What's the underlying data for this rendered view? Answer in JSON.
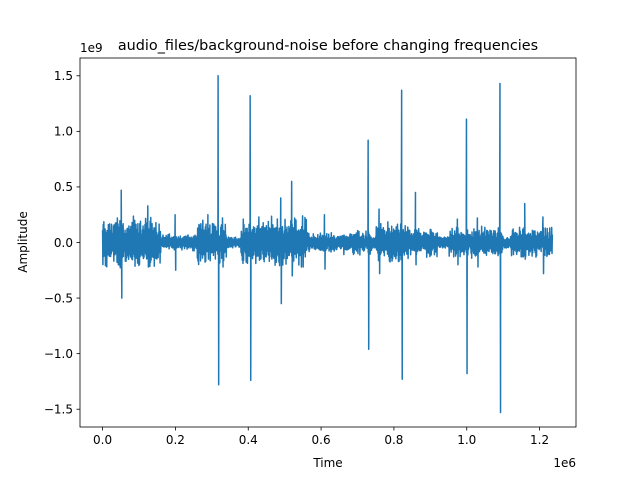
{
  "chart_data": {
    "type": "line",
    "title": "audio_files/background-noise before changing frequencies",
    "xlabel": "Time",
    "ylabel": "Amplitude",
    "x_offset_label": "1e6",
    "y_offset_label": "1e9",
    "xlim": [
      -0.062,
      1.3
    ],
    "ylim": [
      -1.66,
      1.66
    ],
    "x_ticks": [
      0.0,
      0.2,
      0.4,
      0.6,
      0.8,
      1.0,
      1.2
    ],
    "x_tick_labels": [
      "0.0",
      "0.2",
      "0.4",
      "0.6",
      "0.8",
      "1.0",
      "1.2"
    ],
    "y_ticks": [
      -1.5,
      -1.0,
      -0.5,
      0.0,
      0.5,
      1.0,
      1.5
    ],
    "y_tick_labels": [
      "−1.5",
      "−1.0",
      "−0.5",
      "0.0",
      "0.5",
      "1.0",
      "1.5"
    ],
    "grid": false,
    "line_color": "#1f77b4",
    "x_max": 1.235,
    "baseline_amplitude": 0.05,
    "segments": [
      {
        "x": [
          0.0,
          0.06
        ],
        "amplitude": 0.25
      },
      {
        "x": [
          0.04,
          0.16
        ],
        "amplitude": 0.25
      },
      {
        "x": [
          0.16,
          0.3
        ],
        "amplitude": 0.08
      },
      {
        "x": [
          0.26,
          0.34
        ],
        "amplitude": 0.22
      },
      {
        "x": [
          0.38,
          0.44
        ],
        "amplitude": 0.22
      },
      {
        "x": [
          0.44,
          0.56
        ],
        "amplitude": 0.25
      },
      {
        "x": [
          0.56,
          0.66
        ],
        "amplitude": 0.1
      },
      {
        "x": [
          0.66,
          0.74
        ],
        "amplitude": 0.12
      },
      {
        "x": [
          0.75,
          0.84
        ],
        "amplitude": 0.2
      },
      {
        "x": [
          0.84,
          0.92
        ],
        "amplitude": 0.15
      },
      {
        "x": [
          0.95,
          1.1
        ],
        "amplitude": 0.15
      },
      {
        "x": [
          1.12,
          1.235
        ],
        "amplitude": 0.15
      }
    ],
    "peaks": [
      {
        "x": 0.052,
        "max": 0.47,
        "min": -0.5
      },
      {
        "x": 0.125,
        "max": 0.33,
        "min": -0.22
      },
      {
        "x": 0.2,
        "max": 0.25,
        "min": -0.25
      },
      {
        "x": 0.29,
        "max": 0.25,
        "min": -0.15
      },
      {
        "x": 0.318,
        "max": 1.5,
        "min": -1.28
      },
      {
        "x": 0.33,
        "max": 0.22,
        "min": -0.22
      },
      {
        "x": 0.406,
        "max": 1.32,
        "min": -1.24
      },
      {
        "x": 0.43,
        "max": 0.23,
        "min": -0.16
      },
      {
        "x": 0.49,
        "max": 0.4,
        "min": -0.55
      },
      {
        "x": 0.52,
        "max": 0.55,
        "min": -0.3
      },
      {
        "x": 0.55,
        "max": 0.24,
        "min": -0.22
      },
      {
        "x": 0.61,
        "max": 0.25,
        "min": -0.24
      },
      {
        "x": 0.73,
        "max": 0.92,
        "min": -0.96
      },
      {
        "x": 0.76,
        "max": 0.3,
        "min": -0.28
      },
      {
        "x": 0.822,
        "max": 1.37,
        "min": -1.23
      },
      {
        "x": 0.86,
        "max": 0.45,
        "min": -0.2
      },
      {
        "x": 0.975,
        "max": 0.21,
        "min": -0.2
      },
      {
        "x": 1.0,
        "max": 1.11,
        "min": -1.18
      },
      {
        "x": 1.03,
        "max": 0.22,
        "min": -0.22
      },
      {
        "x": 1.092,
        "max": 1.43,
        "min": -1.53
      },
      {
        "x": 1.16,
        "max": 0.35,
        "min": -0.15
      },
      {
        "x": 1.21,
        "max": 0.23,
        "min": -0.28
      }
    ]
  }
}
